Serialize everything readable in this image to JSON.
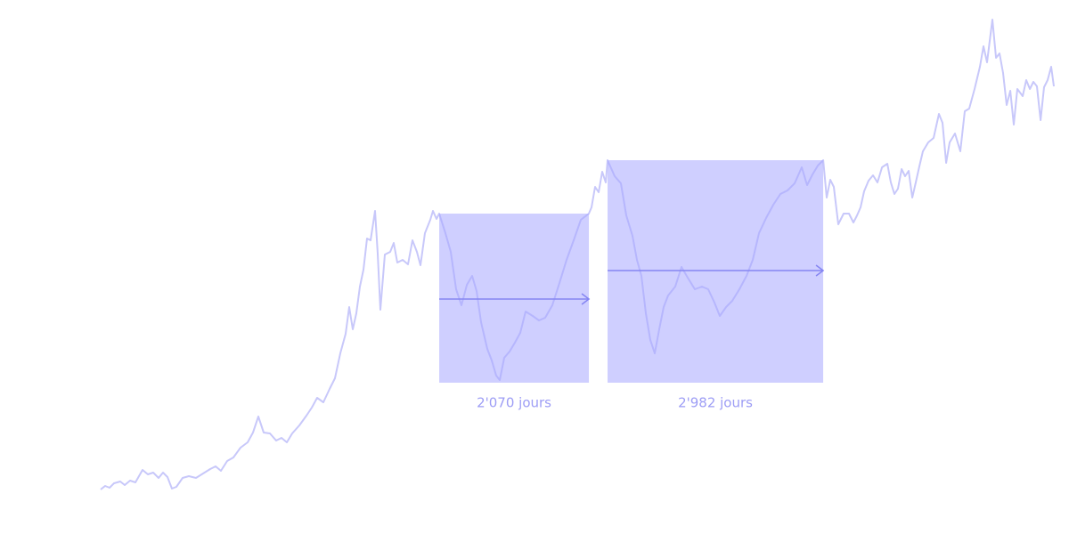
{
  "chart_data": {
    "type": "line",
    "color": "#c8c8fa",
    "xlim": [
      0,
      13182
    ],
    "ylim": [
      0,
      600
    ],
    "x": [
      0,
      62,
      123,
      185,
      271,
      333,
      407,
      480,
      579,
      653,
      727,
      801,
      862,
      924,
      986,
      1047,
      1133,
      1220,
      1318,
      1417,
      1515,
      1589,
      1663,
      1749,
      1836,
      1934,
      2033,
      2107,
      2181,
      2255,
      2341,
      2427,
      2501,
      2575,
      2649,
      2747,
      2846,
      2920,
      2994,
      3080,
      3166,
      3240,
      3314,
      3388,
      3437,
      3487,
      3536,
      3585,
      3634,
      3684,
      3733,
      3795,
      3832,
      3868,
      3930,
      4004,
      4053,
      4103,
      4176,
      4250,
      4312,
      4374,
      4423,
      4484,
      4558,
      4595,
      4645,
      4682,
      4768,
      4842,
      4916,
      4990,
      5064,
      5137,
      5199,
      5261,
      5347,
      5408,
      5470,
      5519,
      5581,
      5655,
      5729,
      5803,
      5877,
      5975,
      6061,
      6148,
      6246,
      6345,
      6443,
      6542,
      6640,
      6751,
      6788,
      6838,
      6887,
      6936,
      6985,
      7010,
      7109,
      7195,
      7269,
      7355,
      7417,
      7478,
      7540,
      7601,
      7663,
      7725,
      7786,
      7848,
      7946,
      8033,
      8119,
      8217,
      8316,
      8402,
      8488,
      8562,
      8649,
      8735,
      8833,
      8932,
      9018,
      9104,
      9203,
      9302,
      9400,
      9499,
      9597,
      9696,
      9770,
      9844,
      9918,
      9992,
      10041,
      10090,
      10139,
      10201,
      10275,
      10349,
      10410,
      10460,
      10509,
      10558,
      10620,
      10681,
      10743,
      10805,
      10879,
      10928,
      10977,
      11026,
      11076,
      11125,
      11174,
      11224,
      11273,
      11322,
      11371,
      11445,
      11519,
      11593,
      11642,
      11692,
      11741,
      11815,
      11889,
      11950,
      12012,
      12086,
      12160,
      12209,
      12258,
      12332,
      12382,
      12431,
      12480,
      12529,
      12579,
      12628,
      12677,
      12751,
      12800,
      12850,
      12899,
      12948,
      12998,
      13047,
      13096,
      13145,
      13182
    ],
    "values": [
      50,
      54,
      52,
      57,
      59,
      55,
      60,
      58,
      72,
      67,
      69,
      63,
      69,
      64,
      51,
      53,
      63,
      65,
      63,
      68,
      73,
      76,
      71,
      82,
      86,
      97,
      103,
      114,
      132,
      114,
      113,
      105,
      108,
      103,
      113,
      122,
      133,
      142,
      153,
      148,
      163,
      175,
      203,
      225,
      255,
      230,
      248,
      278,
      297,
      332,
      330,
      363,
      315,
      252,
      314,
      317,
      327,
      305,
      308,
      303,
      330,
      317,
      302,
      338,
      353,
      363,
      354,
      360,
      338,
      317,
      275,
      257,
      280,
      290,
      273,
      238,
      208,
      195,
      178,
      173,
      198,
      205,
      215,
      226,
      250,
      245,
      240,
      243,
      257,
      282,
      308,
      330,
      353,
      360,
      367,
      390,
      384,
      407,
      395,
      420,
      402,
      394,
      358,
      335,
      308,
      290,
      248,
      218,
      203,
      230,
      255,
      268,
      278,
      300,
      288,
      275,
      278,
      275,
      260,
      245,
      255,
      262,
      275,
      290,
      308,
      338,
      355,
      370,
      382,
      386,
      394,
      412,
      392,
      404,
      414,
      420,
      378,
      398,
      390,
      348,
      360,
      360,
      350,
      358,
      367,
      385,
      397,
      403,
      395,
      412,
      416,
      395,
      382,
      388,
      410,
      402,
      408,
      378,
      395,
      413,
      430,
      440,
      445,
      472,
      462,
      417,
      440,
      450,
      430,
      475,
      478,
      500,
      525,
      548,
      530,
      578,
      535,
      540,
      518,
      482,
      498,
      460,
      500,
      492,
      510,
      500,
      508,
      503,
      465,
      502,
      510,
      525,
      503
    ],
    "periods": [
      {
        "start": 4682,
        "days": 2070,
        "label": "2'070 jours",
        "top": 360,
        "bottom": 170,
        "arrow": 264
      },
      {
        "start": 7010,
        "days": 2982,
        "label": "2'982 jours",
        "top": 420,
        "bottom": 170,
        "arrow": 296
      }
    ],
    "period_color": "#a8a8ff",
    "arrow_color": "#8585f2",
    "label_color": "#9d9df5"
  }
}
